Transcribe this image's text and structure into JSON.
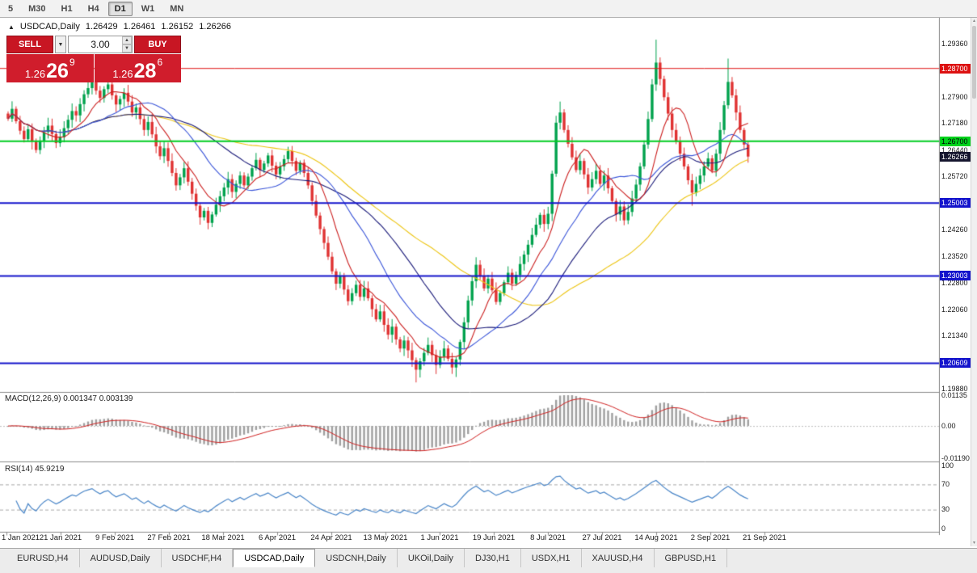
{
  "toolbar": {
    "timeframes": [
      "5",
      "M30",
      "H1",
      "H4",
      "D1",
      "W1",
      "MN"
    ],
    "active": "D1"
  },
  "chart_header": {
    "collapse_icon": "▲",
    "title": "USDCAD,Daily",
    "open": "1.26429",
    "high": "1.26461",
    "low": "1.26152",
    "close": "1.26266"
  },
  "trade_panel": {
    "sell_label": "SELL",
    "buy_label": "BUY",
    "dropdown_icon": "▼",
    "spin_up": "▲",
    "spin_down": "▼",
    "volume": "3.00",
    "sell_price": {
      "base": "1.26",
      "big": "26",
      "sup": "9"
    },
    "buy_price": {
      "base": "1.26",
      "big": "28",
      "sup": "6"
    }
  },
  "price_axis": {
    "ticks": [
      {
        "text": "1.29360",
        "value": 1.2936
      },
      {
        "text": "1.27900",
        "value": 1.279
      },
      {
        "text": "1.27180",
        "value": 1.2718
      },
      {
        "text": "1.26440",
        "value": 1.2644
      },
      {
        "text": "1.25720",
        "value": 1.2572
      },
      {
        "text": "1.24260",
        "value": 1.2426
      },
      {
        "text": "1.23520",
        "value": 1.2352
      },
      {
        "text": "1.22800",
        "value": 1.228
      },
      {
        "text": "1.22060",
        "value": 1.2206
      },
      {
        "text": "1.21340",
        "value": 1.2134
      },
      {
        "text": "1.19880",
        "value": 1.1988
      }
    ],
    "badges": [
      {
        "text": "1.28700",
        "value": 1.287,
        "bg": "#dd1111",
        "fg": "#ffffff"
      },
      {
        "text": "1.26700",
        "value": 1.267,
        "bg": "#00d21b",
        "fg": "#000000"
      },
      {
        "text": "1.26266",
        "value": 1.26266,
        "bg": "#15152e",
        "fg": "#ffffff"
      },
      {
        "text": "1.25003",
        "value": 1.25003,
        "bg": "#1313cc",
        "fg": "#ffffff"
      },
      {
        "text": "1.23003",
        "value": 1.23003,
        "bg": "#1313cc",
        "fg": "#ffffff"
      },
      {
        "text": "1.20609",
        "value": 1.20609,
        "bg": "#1313cc",
        "fg": "#ffffff"
      }
    ]
  },
  "levels": [
    {
      "value": 1.287,
      "color": "#e01515",
      "width": 1
    },
    {
      "value": 1.267,
      "color": "#00cc22",
      "width": 2
    },
    {
      "value": 1.25003,
      "color": "#1515cc",
      "width": 2
    },
    {
      "value": 1.23003,
      "color": "#1515cc",
      "width": 2
    },
    {
      "value": 1.20609,
      "color": "#1515cc",
      "width": 2
    }
  ],
  "macd_panel": {
    "header": "MACD(12,26,9) 0.001347 0.003139",
    "labels": [
      {
        "text": "0.01135",
        "value": 0.01135
      },
      {
        "text": "0.00",
        "value": 0
      },
      {
        "text": "-0.01190",
        "value": -0.0119
      }
    ],
    "range": [
      -0.0119,
      0.01135
    ]
  },
  "rsi_panel": {
    "header": "RSI(14) 45.9219",
    "labels": [
      {
        "text": "100",
        "value": 100
      },
      {
        "text": "70",
        "value": 70
      },
      {
        "text": "30",
        "value": 30
      },
      {
        "text": "0",
        "value": 0
      }
    ],
    "levels": [
      70,
      30
    ]
  },
  "date_axis": [
    "1 Jan 2021",
    "21 Jan 2021",
    "9 Feb 2021",
    "27 Feb 2021",
    "18 Mar 2021",
    "6 Apr 2021",
    "24 Apr 2021",
    "13 May 2021",
    "1 Jun 2021",
    "19 Jun 2021",
    "8 Jul 2021",
    "27 Jul 2021",
    "14 Aug 2021",
    "2 Sep 2021",
    "21 Sep 2021"
  ],
  "tabs": {
    "items": [
      "EURUSD,H4",
      "AUDUSD,Daily",
      "USDCHF,H4",
      "USDCAD,Daily",
      "USDCNH,Daily",
      "UKOil,Daily",
      "DJ30,H1",
      "USDX,H1",
      "XAUUSD,H4",
      "GBPUSD,H1"
    ],
    "active": "USDCAD,Daily"
  },
  "chart_data": {
    "type": "candlestick",
    "symbol": "USDCAD",
    "timeframe": "Daily",
    "current_ohlc": {
      "open": 1.26429,
      "high": 1.26461,
      "low": 1.26152,
      "close": 1.26266
    },
    "price_range": [
      1.1983,
      1.3008
    ],
    "first_open": 1.2745,
    "closes": [
      1.2731,
      1.2758,
      1.2724,
      1.2698,
      1.2675,
      1.2702,
      1.2668,
      1.2645,
      1.2671,
      1.2694,
      1.2712,
      1.2689,
      1.2664,
      1.268,
      1.2705,
      1.2728,
      1.2752,
      1.274,
      1.2771,
      1.2798,
      1.2815,
      1.2832,
      1.2808,
      1.2788,
      1.2812,
      1.2825,
      1.2795,
      1.277,
      1.2785,
      1.2802,
      1.2778,
      1.2748,
      1.2762,
      1.273,
      1.27,
      1.2722,
      1.2688,
      1.2655,
      1.2628,
      1.265,
      1.2615,
      1.2582,
      1.2548,
      1.257,
      1.2595,
      1.2558,
      1.2525,
      1.2492,
      1.246,
      1.2478,
      1.2445,
      1.2468,
      1.2495,
      1.2518,
      1.2542,
      1.2565,
      1.253,
      1.2552,
      1.2575,
      1.2548,
      1.2572,
      1.2595,
      1.2618,
      1.259,
      1.2608,
      1.263,
      1.2602,
      1.2578,
      1.26,
      1.262,
      1.2642,
      1.2615,
      1.2588,
      1.261,
      1.2582,
      1.2548,
      1.2505,
      1.2465,
      1.2428,
      1.239,
      1.2352,
      1.2312,
      1.2278,
      1.23,
      1.2262,
      1.223,
      1.2252,
      1.2275,
      1.2242,
      1.2265,
      1.2238,
      1.2208,
      1.218,
      1.2202,
      1.2165,
      1.2138,
      1.216,
      1.2125,
      1.21,
      1.2122,
      1.2095,
      1.2068,
      1.2042,
      1.2065,
      1.2088,
      1.211,
      1.2082,
      1.2055,
      1.2078,
      1.21,
      1.2072,
      1.2048,
      1.207,
      1.2118,
      1.2172,
      1.2232,
      1.2285,
      1.233,
      1.2298,
      1.2265,
      1.2292,
      1.226,
      1.2228,
      1.2252,
      1.2282,
      1.2308,
      1.2278,
      1.2302,
      1.2332,
      1.2358,
      1.2385,
      1.2412,
      1.244,
      1.2467,
      1.2442,
      1.247,
      1.258,
      1.272,
      1.2748,
      1.27,
      1.2662,
      1.2625,
      1.259,
      1.2615,
      1.2578,
      1.2542,
      1.2565,
      1.2588,
      1.2552,
      1.2575,
      1.254,
      1.2505,
      1.2468,
      1.249,
      1.2452,
      1.2475,
      1.2512,
      1.255,
      1.26,
      1.266,
      1.273,
      1.2825,
      1.2885,
      1.284,
      1.279,
      1.2745,
      1.27,
      1.2668,
      1.2635,
      1.26,
      1.2562,
      1.2528,
      1.2552,
      1.2575,
      1.26,
      1.2622,
      1.2588,
      1.2635,
      1.27,
      1.2768,
      1.2832,
      1.2795,
      1.2748,
      1.27,
      1.266,
      1.2627
    ],
    "wick_overrides": {
      "highs": {
        "21": 1.2852,
        "138": 1.2778,
        "162": 1.2948,
        "180": 1.2896
      },
      "lows": {
        "48": 1.244,
        "102": 1.2007,
        "107": 1.203,
        "112": 1.2022,
        "171": 1.2492
      }
    },
    "moving_averages": [
      {
        "period": 55,
        "color": "#edc512"
      },
      {
        "period": 34,
        "color": "#1b1b7a"
      },
      {
        "period": 21,
        "color": "#3a55d9"
      },
      {
        "period": 9,
        "color": "#cc2020"
      }
    ],
    "macd_params": [
      12,
      26,
      9
    ],
    "rsi_period": 14,
    "style": {
      "bull": "#00a24d",
      "bear": "#e03232",
      "macd_hist": "#a0a0a0",
      "macd_signal": "#d02020",
      "rsi_line": "#4a86c8",
      "separator": "#8c8c8c"
    }
  }
}
